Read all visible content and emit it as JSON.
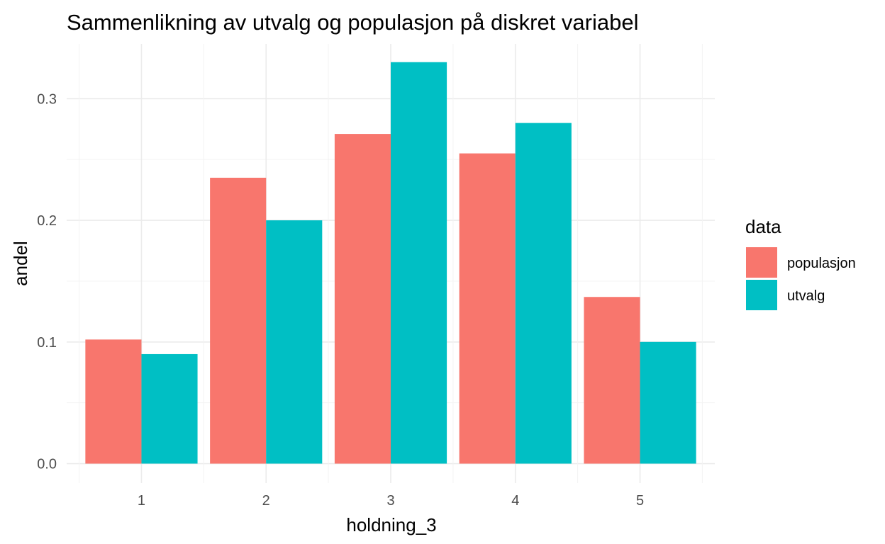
{
  "chart_data": {
    "type": "bar",
    "title": "Sammenlikning av utvalg og populasjon på diskret variabel",
    "xlabel": "holdning_3",
    "ylabel": "andel",
    "categories": [
      "1",
      "2",
      "3",
      "4",
      "5"
    ],
    "series": [
      {
        "name": "populasjon",
        "color": "#F8766D",
        "values": [
          0.102,
          0.235,
          0.271,
          0.255,
          0.137
        ]
      },
      {
        "name": "utvalg",
        "color": "#00BFC4",
        "values": [
          0.09,
          0.2,
          0.33,
          0.28,
          0.1
        ]
      }
    ],
    "yticks": [
      "0.0",
      "0.1",
      "0.2",
      "0.3"
    ],
    "ylim": [
      -0.016,
      0.345
    ],
    "grid": true,
    "legend": {
      "title": "data",
      "position": "right"
    }
  }
}
